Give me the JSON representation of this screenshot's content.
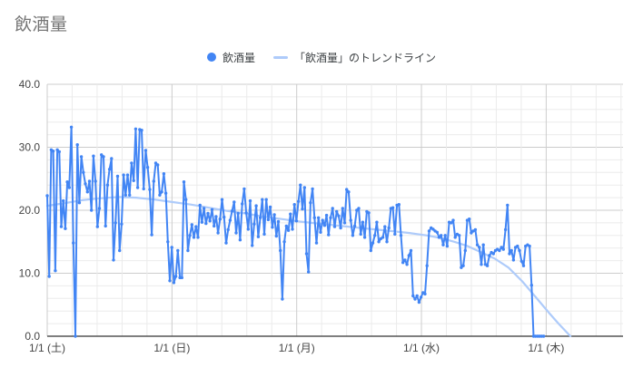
{
  "header": {
    "title": "飲酒量"
  },
  "legend": {
    "series_label": "飲酒量",
    "trend_label": "「飲酒量」のトレンドライン"
  },
  "colors": {
    "series": "#4285f4",
    "trendline": "#aecbfa",
    "grid_major": "#cccccc",
    "grid_minor": "#ebebeb",
    "baseline": "#333333",
    "tick_label": "#444444",
    "title_text": "#757575"
  },
  "chart_data": {
    "type": "line",
    "title": "飲酒量",
    "xlabel": "",
    "ylabel": "",
    "ylim": [
      0,
      40
    ],
    "y_major_step": 10,
    "y_minor_step": 2,
    "yticks": [
      "0.0",
      "10.0",
      "20.0",
      "30.0",
      "40.0"
    ],
    "xticks": [
      "1/1 (土)",
      "1/1 (日)",
      "1/1 (月)",
      "1/1 (水)",
      "1/1 (木)"
    ],
    "grid": "major+minor",
    "legend_position": "top-center",
    "series": [
      {
        "name": "飲酒量",
        "style": "line+points",
        "color": "#4285f4",
        "values": [
          22.3,
          9.5,
          29.6,
          29.4,
          10.4,
          29.6,
          29.3,
          17.4,
          21.5,
          17.1,
          24.5,
          23.6,
          33.2,
          14.8,
          0.0,
          30.4,
          21.2,
          28.5,
          26.0,
          24.2,
          22.9,
          24.6,
          20.0,
          28.6,
          24.6,
          17.4,
          20.3,
          28.8,
          28.5,
          17.5,
          24.0,
          26.5,
          28.2,
          12.1,
          18.0,
          25.4,
          13.6,
          17.8,
          25.6,
          22.4,
          25.6,
          22.4,
          27.5,
          24.7,
          32.9,
          23.6,
          32.8,
          32.7,
          23.4,
          29.5,
          26.8,
          23.3,
          16.1,
          24.6,
          27.5,
          27.2,
          22.4,
          22.9,
          25.8,
          22.7,
          15.0,
          8.8,
          14.1,
          8.5,
          9.5,
          13.6,
          9.3,
          9.3,
          24.5,
          21.7,
          13.6,
          16.0,
          17.7,
          15.7,
          17.4,
          15.7,
          20.8,
          18.1,
          20.3,
          17.9,
          19.5,
          18.3,
          20.1,
          17.5,
          19.0,
          16.4,
          18.6,
          21.7,
          18.9,
          14.8,
          16.9,
          18.4,
          19.9,
          21.3,
          16.4,
          19.5,
          15.3,
          21.0,
          23.4,
          19.6,
          17.0,
          21.5,
          14.4,
          17.8,
          20.7,
          15.8,
          18.8,
          21.7,
          16.2,
          21.7,
          18.5,
          20.5,
          17.3,
          19.3,
          15.9,
          18.2,
          13.6,
          5.9,
          15.0,
          17.5,
          16.8,
          19.4,
          17.0,
          20.9,
          18.3,
          21.4,
          24.0,
          20.2,
          23.6,
          13.1,
          10.2,
          21.2,
          23.4,
          18.8,
          14.8,
          18.8,
          16.5,
          18.4,
          17.6,
          19.2,
          16.1,
          18.8,
          20.3,
          17.4,
          19.8,
          19.1,
          17.2,
          20.3,
          18.0,
          23.3,
          22.9,
          18.4,
          16.0,
          17.5,
          20.0,
          20.3,
          16.2,
          18.1,
          15.7,
          19.8,
          19.6,
          13.6,
          14.8,
          16.0,
          18.1,
          15.0,
          15.5,
          15.7,
          17.4,
          15.0,
          17.2,
          20.3,
          20.4,
          16.2,
          20.8,
          20.9,
          16.0,
          11.7,
          12.1,
          11.4,
          12.8,
          13.6,
          6.4,
          5.9,
          6.4,
          5.4,
          6.2,
          6.9,
          6.7,
          11.2,
          16.7,
          17.2,
          17.0,
          16.7,
          16.5,
          15.7,
          16.0,
          14.5,
          16.0,
          14.3,
          18.1,
          18.0,
          18.4,
          15.7,
          16.2,
          16.0,
          10.9,
          11.2,
          13.6,
          18.4,
          18.6,
          16.4,
          16.7,
          16.9,
          14.5,
          14.1,
          11.4,
          14.5,
          11.4,
          11.2,
          12.8,
          13.3,
          13.1,
          13.6,
          13.8,
          13.6,
          14.1,
          13.8,
          16.9,
          20.8,
          13.1,
          13.6,
          12.1,
          14.1,
          14.3,
          13.6,
          11.9,
          11.2,
          14.3,
          14.5,
          14.3,
          8.1,
          0.0,
          0.0,
          0.0,
          0.0,
          0.0,
          0.0
        ]
      },
      {
        "name": "「飲酒量」のトレンドライン",
        "style": "trendline",
        "color": "#aecbfa",
        "u": [
          0,
          0.033,
          0.07,
          0.106,
          0.143,
          0.179,
          0.216,
          0.253,
          0.289,
          0.326,
          0.362,
          0.399,
          0.435,
          0.472,
          0.509,
          0.545,
          0.582,
          0.618,
          0.655,
          0.692,
          0.728,
          0.765,
          0.792,
          0.82,
          0.847,
          0.875,
          0.902,
          0.929,
          0.957,
          0.984,
          1.012,
          1.03,
          1.054
        ],
        "v": [
          20.7,
          21.1,
          21.6,
          21.9,
          22.1,
          22.0,
          21.7,
          21.3,
          20.9,
          20.4,
          19.9,
          19.5,
          19.0,
          18.6,
          18.2,
          17.9,
          17.6,
          17.3,
          17.0,
          16.7,
          16.4,
          16.0,
          15.6,
          15.0,
          14.3,
          13.3,
          12.3,
          10.9,
          8.7,
          6.2,
          3.6,
          2.0,
          0.0
        ]
      }
    ]
  }
}
